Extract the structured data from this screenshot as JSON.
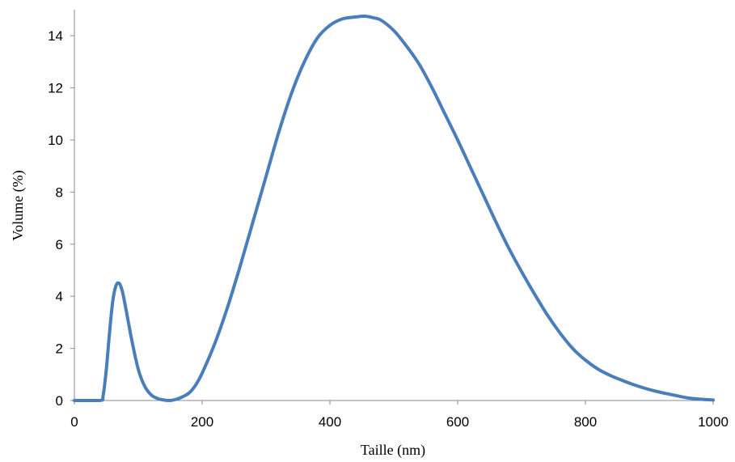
{
  "chart_data": {
    "type": "line",
    "title": "",
    "xlabel": "Taille (nm)",
    "ylabel": "Volume (%)",
    "xlim": [
      0,
      1000
    ],
    "ylim": [
      0,
      15
    ],
    "x_ticks": [
      0,
      200,
      400,
      600,
      800,
      1000
    ],
    "y_ticks": [
      0,
      2,
      4,
      6,
      8,
      10,
      12,
      14
    ],
    "grid": false,
    "legend": "none",
    "series": [
      {
        "color": "#4a7ebb",
        "x": [
          0,
          40,
          45,
          50,
          55,
          60,
          65,
          70,
          75,
          80,
          90,
          100,
          110,
          120,
          130,
          140,
          150,
          160,
          170,
          180,
          190,
          200,
          220,
          240,
          260,
          280,
          300,
          320,
          340,
          360,
          380,
          400,
          420,
          440,
          455,
          470,
          480,
          500,
          520,
          540,
          560,
          580,
          600,
          620,
          640,
          660,
          680,
          700,
          720,
          740,
          760,
          780,
          800,
          820,
          840,
          860,
          880,
          900,
          920,
          940,
          960,
          980,
          1000
        ],
        "y": [
          0,
          0,
          0.2,
          1.2,
          2.6,
          3.8,
          4.4,
          4.5,
          4.2,
          3.6,
          2.3,
          1.2,
          0.55,
          0.22,
          0.08,
          0.02,
          0.0,
          0.05,
          0.15,
          0.3,
          0.6,
          1.05,
          2.2,
          3.6,
          5.2,
          6.9,
          8.6,
          10.3,
          11.8,
          13.0,
          13.9,
          14.4,
          14.65,
          14.72,
          14.75,
          14.68,
          14.6,
          14.2,
          13.6,
          12.9,
          12.0,
          11.0,
          10.0,
          8.95,
          7.9,
          6.85,
          5.85,
          4.95,
          4.1,
          3.3,
          2.6,
          2.0,
          1.55,
          1.2,
          0.95,
          0.75,
          0.57,
          0.42,
          0.3,
          0.2,
          0.1,
          0.05,
          0.02
        ]
      }
    ]
  }
}
